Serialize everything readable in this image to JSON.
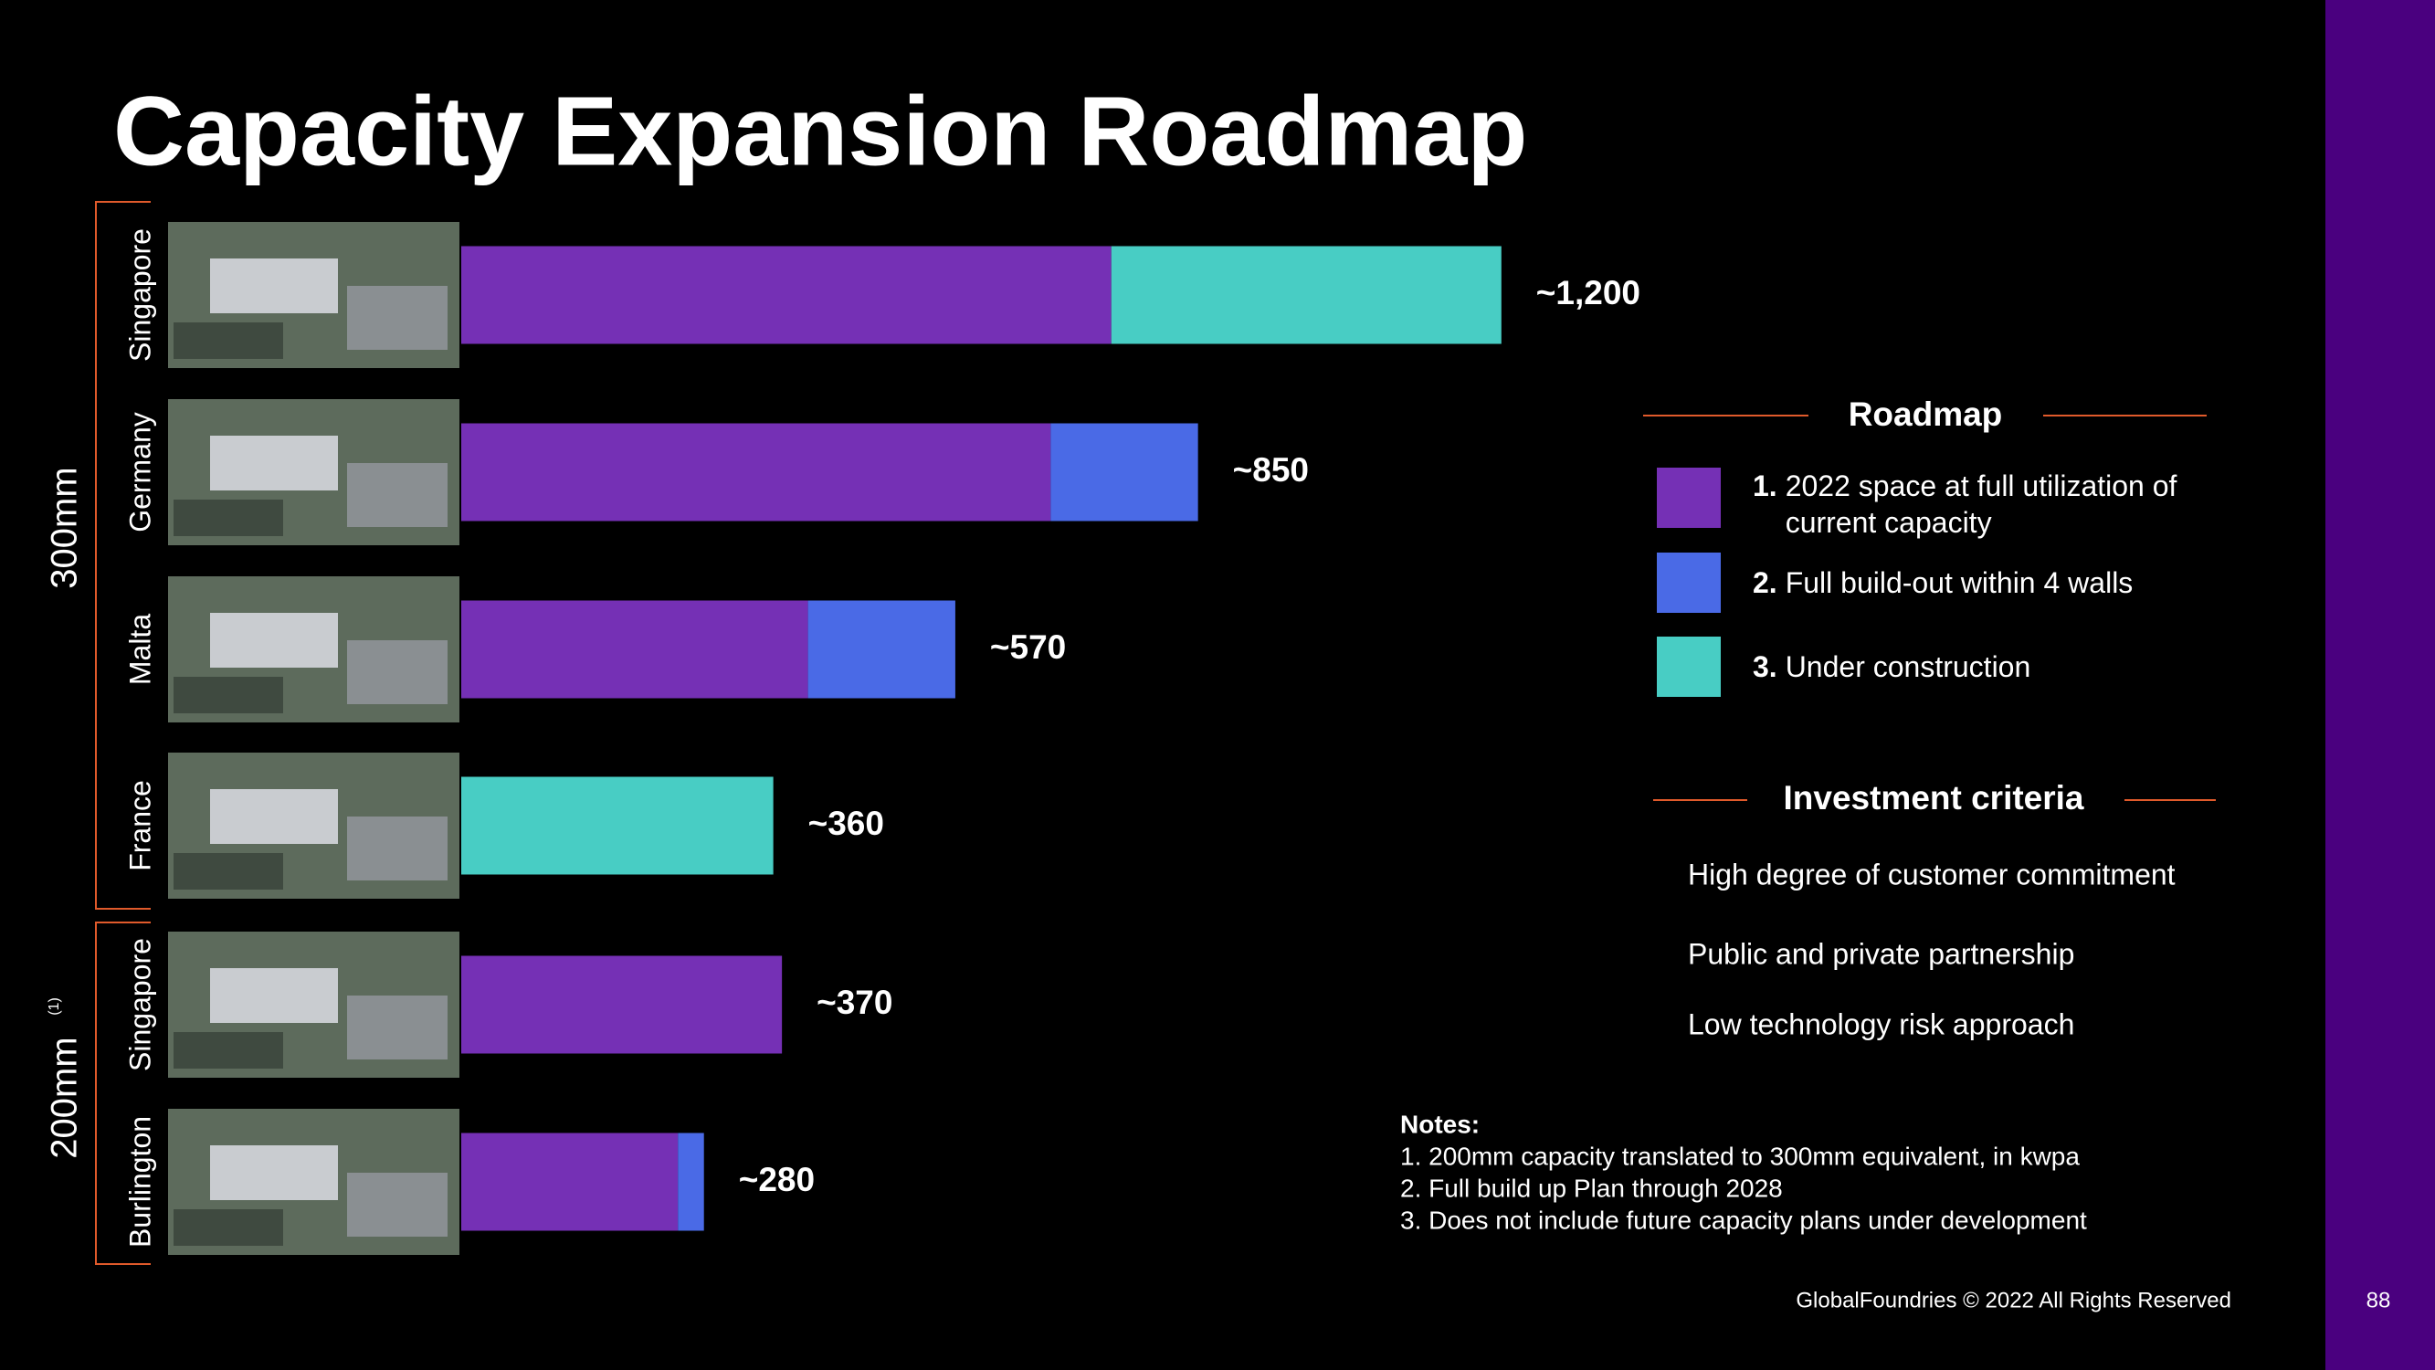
{
  "chart_data": {
    "type": "stacked-bar-horizontal",
    "title": "Capacity Expansion Roadmap",
    "categories": [
      "Singapore",
      "Germany",
      "Malta",
      "France",
      "Singapore",
      "Burlington"
    ],
    "groups": [
      {
        "label": "300mm",
        "size": 4
      },
      {
        "label": "200mm",
        "note": "(1)",
        "size": 2
      }
    ],
    "series": [
      {
        "number": "1.",
        "name": "2022 space at full utilization of current capacity",
        "color": "#7530b5",
        "values": [
          750,
          680,
          400,
          null,
          370,
          250
        ]
      },
      {
        "number": "2.",
        "name": "Full build-out within 4 walls",
        "color": "#4a6ae6",
        "values": [
          null,
          170,
          170,
          null,
          null,
          30
        ]
      },
      {
        "number": "3.",
        "name": "Under construction",
        "color": "#48cdc4",
        "values": [
          450,
          null,
          null,
          360,
          null,
          null
        ]
      }
    ],
    "total_labels": [
      "~1,200",
      "~850",
      "~570",
      "~360",
      "~370",
      "~280"
    ],
    "legend_title": "Roadmap"
  },
  "criteria": {
    "title": "Investment criteria",
    "items": [
      "High degree of customer commitment",
      "Public and private partnership",
      "Low technology risk approach"
    ]
  },
  "notes": {
    "title": "Notes:",
    "items": [
      "1. 200mm capacity translated to 300mm equivalent, in kwpa",
      "2. Full build up Plan through 2028",
      "3. Does not include future capacity plans under development"
    ]
  },
  "footer": "GlobalFoundries © 2022 All Rights Reserved",
  "page_number": "88"
}
